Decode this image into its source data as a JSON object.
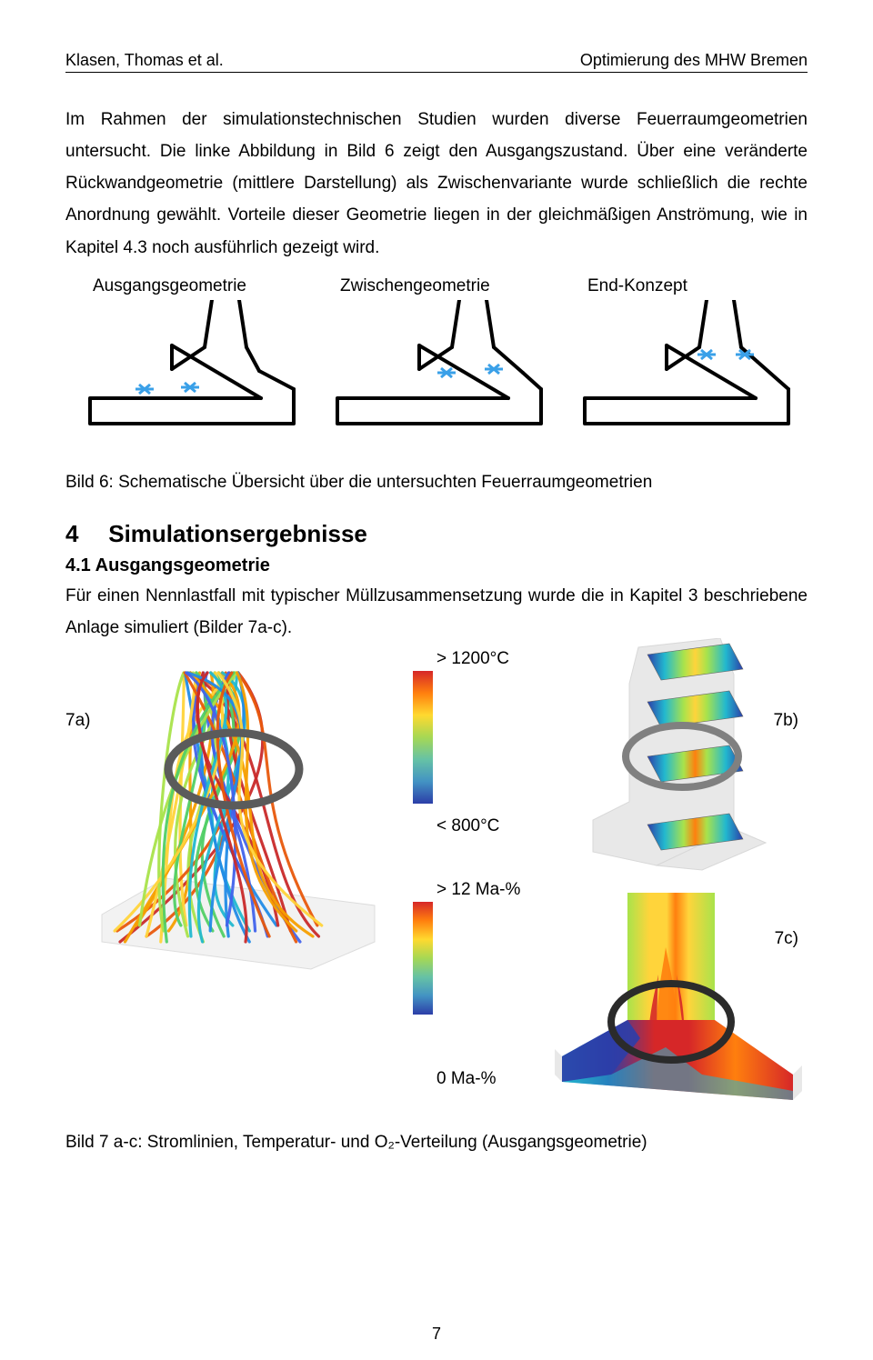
{
  "header": {
    "left": "Klasen, Thomas et al.",
    "right": "Optimierung des MHW Bremen"
  },
  "paragraph": "Im Rahmen der simulationstechnischen Studien wurden diverse Feuerraumgeometrien untersucht. Die linke Abbildung in Bild 6 zeigt den Ausgangszustand. Über eine veränderte Rückwandgeometrie (mittlere Darstellung) als Zwischenvariante wurde schließlich die rechte Anordnung gewählt. Vorteile dieser Geometrie liegen in der gleichmäßigen Anströmung, wie in Kapitel 4.3 noch ausführlich gezeigt wird.",
  "schematics": {
    "labels": [
      "Ausgangsgeometrie",
      "Zwischengeometrie",
      "End-Konzept"
    ],
    "stroke_color": "#000000",
    "stroke_width": 4,
    "accent_color": "#3aa0e8"
  },
  "caption_bild6": "Bild 6:  Schematische Übersicht über die untersuchten Feuerraumgeometrien",
  "section": {
    "num": "4",
    "title": "Simulationsergebnisse"
  },
  "subsection": {
    "num": "4.1",
    "title": "Ausgangsgeometrie"
  },
  "para2": "Für einen Nennlastfall mit typischer Müllzusammensetzung wurde die in Kapitel 3 beschriebene Anlage simuliert (Bilder 7a-c).",
  "sim_labels": {
    "a": "7a)",
    "b": "7b)",
    "c": "7c)"
  },
  "colorbars": {
    "temp": {
      "top_label": "> 1200°C",
      "bottom_label": "< 800°C",
      "colors": [
        "#d62728",
        "#ff7f0e",
        "#ffd92f",
        "#a6d854",
        "#66c2a5",
        "#4393c3",
        "#2c3ea8"
      ],
      "height": 146
    },
    "mass": {
      "top_label": "> 12 Ma-%",
      "bottom_label": "0 Ma-%",
      "colors": [
        "#d62728",
        "#ff7f0e",
        "#ffd92f",
        "#a6d854",
        "#66c2a5",
        "#4393c3",
        "#2c3ea8"
      ],
      "height": 124
    }
  },
  "streamlines": {
    "colors": [
      "#c92a2a",
      "#e8590c",
      "#f59f00",
      "#ffd43b",
      "#a9e34b",
      "#51cf66",
      "#22b8cf",
      "#228be6",
      "#4263eb"
    ],
    "ring_color": "#5b5b5b"
  },
  "slices_7b": {
    "geometry_fill": "#e8e8e8",
    "ring_color": "#808080",
    "slice_colors": [
      "#2c3ea8",
      "#22b8cf",
      "#a9e34b",
      "#ffd43b",
      "#ff7f0e",
      "#d62728"
    ]
  },
  "field_7c": {
    "colors": {
      "red": "#d62728",
      "orange": "#ff7f0e",
      "yellow": "#ffd43b",
      "green": "#a9e34b",
      "cyan": "#22b8cf",
      "blue": "#2c3ea8"
    },
    "ring_color": "#2b2b2b"
  },
  "caption_bild7": "Bild 7 a-c:  Stromlinien, Temperatur- und O₂-Verteilung (Ausgangsgeometrie)",
  "page_number": "7"
}
